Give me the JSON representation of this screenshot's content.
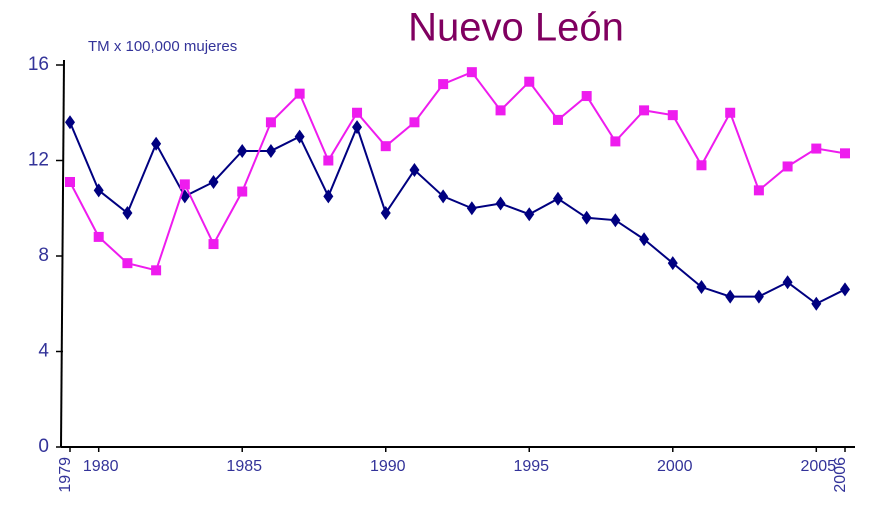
{
  "chart_data": {
    "type": "line",
    "title": "Nuevo León",
    "y_label": "TM x 100,000 mujeres",
    "x": [
      1979,
      1980,
      1981,
      1982,
      1983,
      1984,
      1985,
      1986,
      1987,
      1988,
      1989,
      1990,
      1991,
      1992,
      1993,
      1994,
      1995,
      1996,
      1997,
      1998,
      1999,
      2000,
      2001,
      2002,
      2003,
      2004,
      2005,
      2006
    ],
    "series": [
      {
        "color": "#000080",
        "marker": "diamond",
        "values": [
          13.6,
          10.75,
          9.8,
          12.7,
          10.5,
          11.1,
          12.4,
          12.4,
          13.0,
          10.5,
          13.4,
          9.8,
          11.6,
          10.5,
          10.0,
          10.2,
          9.75,
          10.4,
          9.6,
          9.5,
          8.7,
          7.7,
          6.7,
          6.3,
          6.3,
          6.9,
          6.0,
          6.6
        ]
      },
      {
        "color": "#ee1cee",
        "marker": "square",
        "values": [
          11.1,
          8.8,
          7.7,
          7.4,
          11.0,
          8.5,
          10.7,
          13.6,
          14.8,
          12.0,
          14.0,
          12.6,
          13.6,
          15.2,
          15.7,
          14.1,
          15.3,
          13.7,
          14.7,
          12.8,
          14.1,
          13.9,
          11.8,
          14.0,
          10.75,
          11.75,
          12.5,
          12.3
        ]
      }
    ],
    "xlim": [
      1979,
      2006
    ],
    "xticks": [
      1979,
      1980,
      1985,
      1990,
      1995,
      2000,
      2005,
      2006
    ],
    "ylim": [
      0,
      16
    ],
    "yticks": [
      0,
      4,
      8,
      12,
      16
    ],
    "grid": false
  }
}
